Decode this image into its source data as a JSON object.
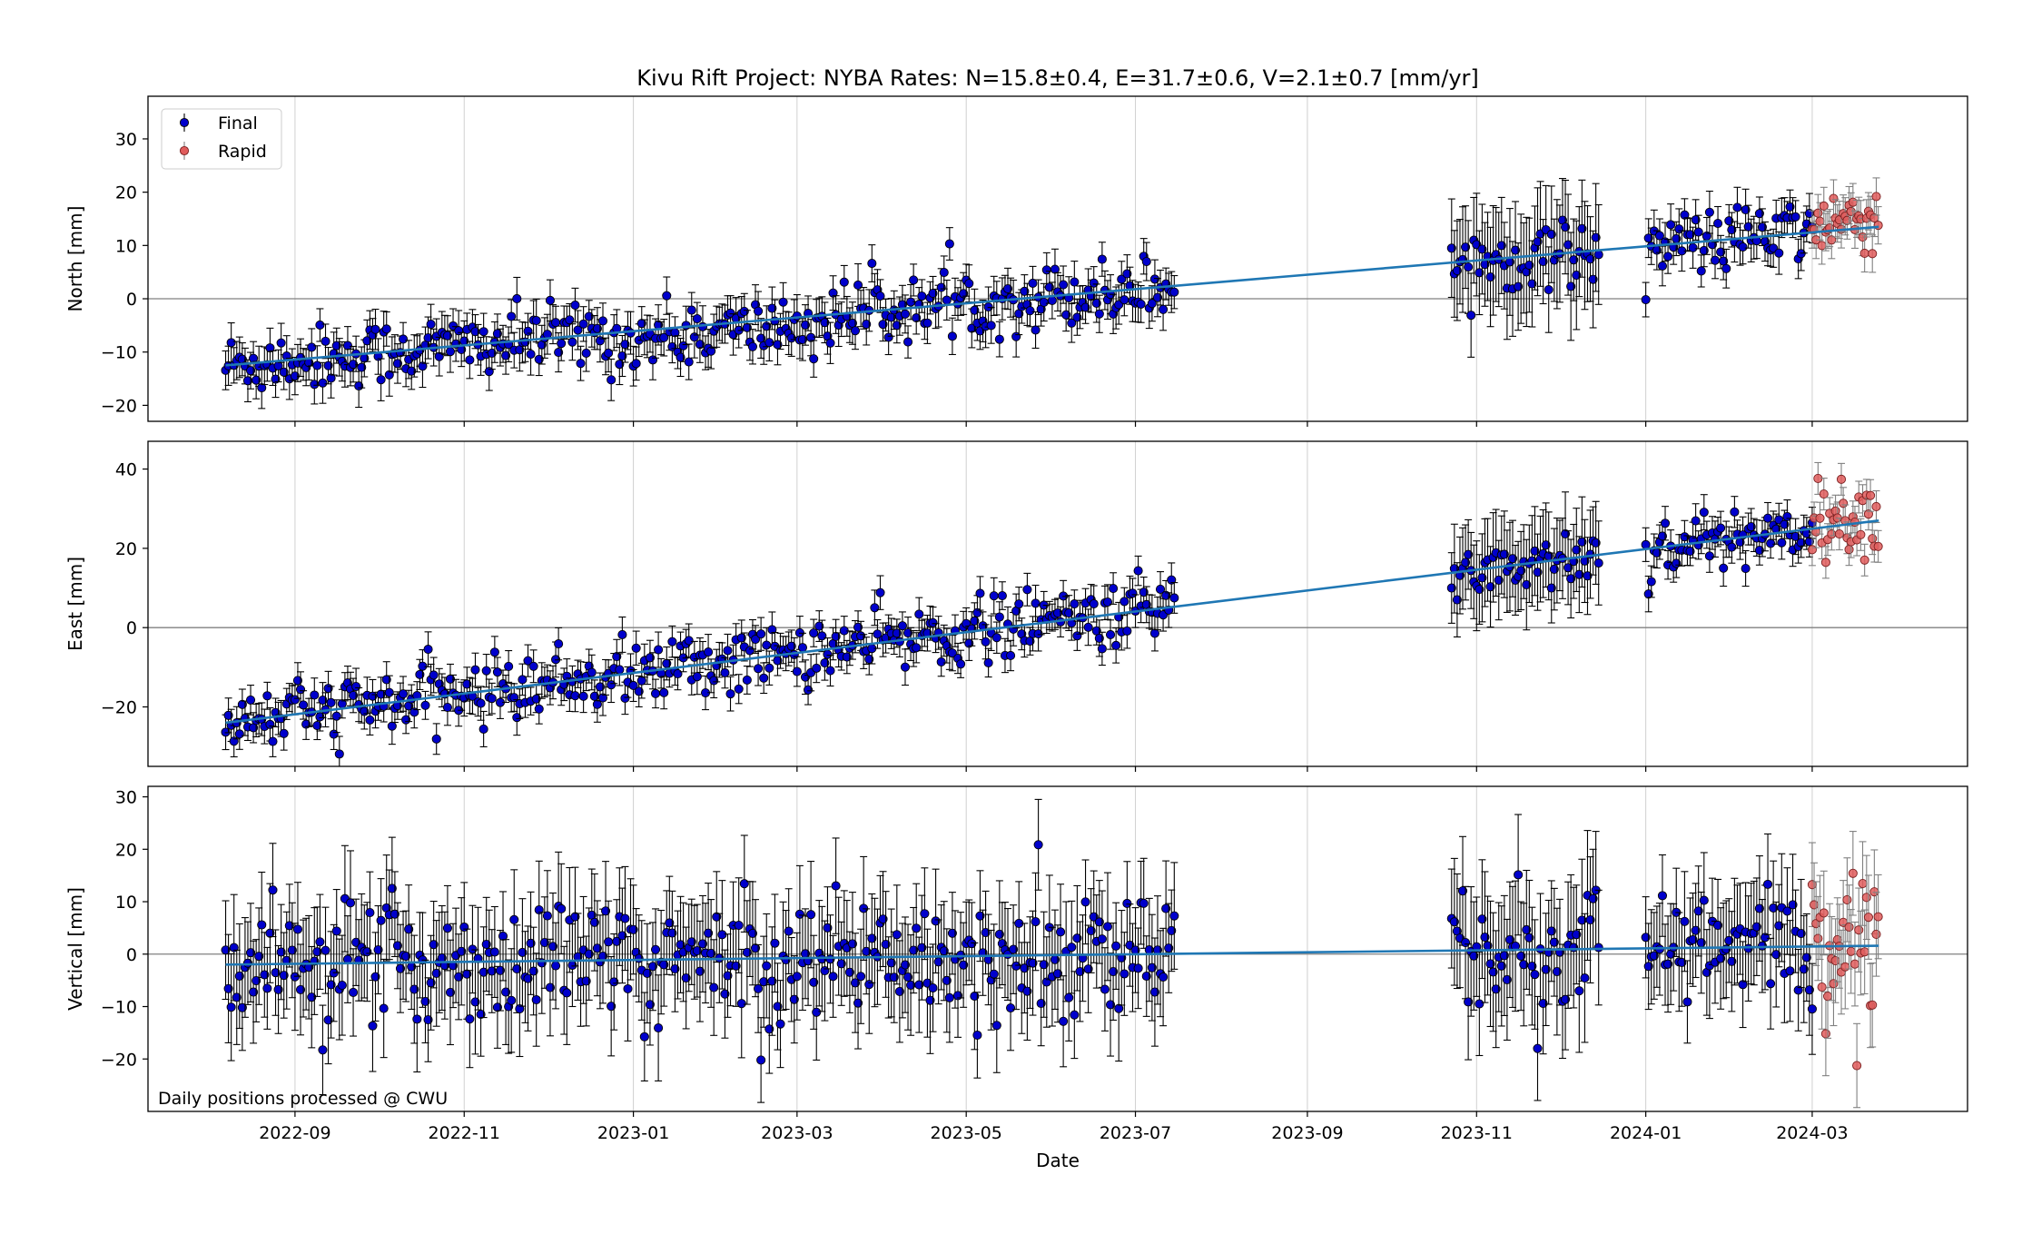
{
  "chart_data": {
    "type": "scatter",
    "title": "Kivu Rift Project: NYBA  Rates: N=15.8±0.4, E=31.7±0.6, V=2.1±0.7 [mm/yr]",
    "xlabel": "Date",
    "x_ticks": [
      "2022-09",
      "2022-11",
      "2023-01",
      "2023-03",
      "2023-05",
      "2023-07",
      "2023-09",
      "2023-11",
      "2024-01",
      "2024-03"
    ],
    "x_range": [
      "2022-07-10",
      "2024-04-26"
    ],
    "legend": {
      "placement": "top-left",
      "entries": [
        "Final",
        "Rapid"
      ]
    },
    "colors": {
      "final": "#0000cc",
      "rapid": "#e05c5c",
      "fit": "#1f77b4",
      "errorbar": "#000000",
      "rapid_errorbar": "#808080",
      "zero_line": "#808080",
      "grid": "#d0d0d0"
    },
    "annotation": "Daily positions processed @ CWU",
    "grid": true,
    "segments": {
      "final": [
        [
          "2022-08-07",
          "2023-07-15"
        ],
        [
          "2023-10-23",
          "2023-12-15"
        ],
        [
          "2024-01-01",
          "2024-03-01"
        ]
      ],
      "rapid": [
        [
          "2024-03-01",
          "2024-03-25"
        ]
      ]
    },
    "panels": [
      {
        "ylabel": "North [mm]",
        "ylim": [
          -23,
          38
        ],
        "yticks": [
          -20,
          -10,
          0,
          10,
          20,
          30
        ],
        "fit": [
          {
            "x": "2022-08-07",
            "y": -12.5
          },
          {
            "x": "2024-03-25",
            "y": 13.5
          }
        ],
        "final_scatter": 3.0,
        "final_error": 3.5,
        "gap2_error": 9.0,
        "rapid_error": 3.5
      },
      {
        "ylabel": "East [mm]",
        "ylim": [
          -35,
          47
        ],
        "yticks": [
          -20,
          0,
          20,
          40
        ],
        "fit": [
          {
            "x": "2022-08-07",
            "y": -24
          },
          {
            "x": "2024-03-25",
            "y": 27
          }
        ],
        "final_scatter": 4.0,
        "final_error": 4.0,
        "gap2_error": 10.0,
        "rapid_error": 4.0
      },
      {
        "ylabel": "Vertical [mm]",
        "ylim": [
          -30,
          32
        ],
        "yticks": [
          -20,
          -10,
          0,
          10,
          20,
          30
        ],
        "fit": [
          {
            "x": "2022-08-07",
            "y": -2.0
          },
          {
            "x": "2024-03-25",
            "y": 1.6
          }
        ],
        "final_scatter": 6.0,
        "final_error": 9.0,
        "gap2_error": 11.0,
        "rapid_error": 8.0
      }
    ]
  }
}
